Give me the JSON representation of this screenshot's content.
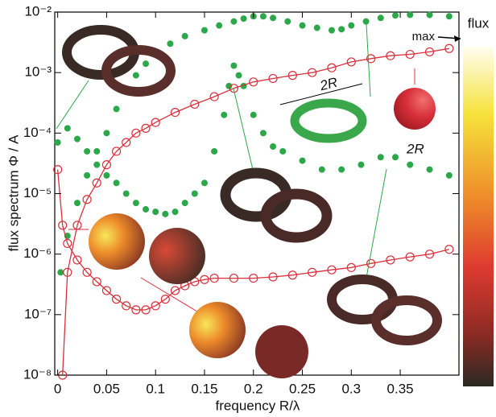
{
  "chart_data": {
    "type": "scatter",
    "y_label": "flux spectrum Φ / A",
    "x_label": "frequency R/λ",
    "xlim": [
      -0.003,
      0.41
    ],
    "ylim": [
      1e-08,
      0.01
    ],
    "log_y": true,
    "xticks": [
      0,
      0.05,
      0.1,
      0.15,
      0.2,
      0.25,
      0.3,
      0.35
    ],
    "yticks": [
      {
        "value": 1e-08,
        "label": "10⁻⁸"
      },
      {
        "value": 1e-07,
        "label": "10⁻⁷"
      },
      {
        "value": 1e-06,
        "label": "10⁻⁶"
      },
      {
        "value": 1e-05,
        "label": "10⁻⁵"
      },
      {
        "value": 0.0001,
        "label": "10⁻⁴"
      },
      {
        "value": 0.001,
        "label": "10⁻³"
      },
      {
        "value": 0.01,
        "label": "10⁻²"
      }
    ],
    "series": [
      {
        "color": "#2ca84a",
        "marker": "dot",
        "x": [
          0.003,
          0.01,
          0.02,
          0.03,
          0.04,
          0.05,
          0.06,
          0.07,
          0.08,
          0.09,
          0.1,
          0.115,
          0.13,
          0.15,
          0.165,
          0.18,
          0.19,
          0.2,
          0.21,
          0.22,
          0.235,
          0.25,
          0.265,
          0.28,
          0.29,
          0.3,
          0.315,
          0.33,
          0.345,
          0.36,
          0.38,
          0.4
        ],
        "values": [
          5e-07,
          2e-06,
          7e-06,
          2e-05,
          5e-05,
          0.0001,
          0.00025,
          0.0005,
          0.0009,
          0.0014,
          0.002,
          0.003,
          0.004,
          0.005,
          0.006,
          0.007,
          0.0078,
          0.0085,
          0.0085,
          0.008,
          0.007,
          0.006,
          0.0055,
          0.005,
          0.0052,
          0.006,
          0.007,
          0.008,
          0.0088,
          0.009,
          0.009,
          0.0085
        ]
      },
      {
        "color": "#2ca84a",
        "marker": "dot",
        "x": [
          0,
          0.01,
          0.02,
          0.03,
          0.04,
          0.05,
          0.06,
          0.07,
          0.08,
          0.09,
          0.1,
          0.11,
          0.12,
          0.13,
          0.14,
          0.15,
          0.16,
          0.17,
          0.175,
          0.18,
          0.185,
          0.19,
          0.2,
          0.21,
          0.22,
          0.23,
          0.25,
          0.27,
          0.29,
          0.31,
          0.33,
          0.345,
          0.36,
          0.38,
          0.4
        ],
        "values": [
          7e-05,
          0.00012,
          8e-05,
          5e-05,
          3e-05,
          2e-05,
          1.5e-05,
          1e-05,
          7e-06,
          5.5e-06,
          5e-06,
          4.6e-06,
          5e-06,
          7e-06,
          1e-05,
          1.5e-05,
          5e-05,
          0.0002,
          0.0006,
          0.0013,
          0.0009,
          0.0006,
          0.0002,
          0.0001,
          6e-05,
          5e-05,
          3.5e-05,
          2.5e-05,
          2.5e-05,
          3e-05,
          4e-05,
          4e-05,
          3e-05,
          2.5e-05,
          2e-05
        ]
      },
      {
        "color": "#d9303c",
        "marker": "circle-line",
        "x": [
          0.005,
          0.01,
          0.02,
          0.03,
          0.04,
          0.05,
          0.06,
          0.07,
          0.08,
          0.09,
          0.1,
          0.12,
          0.14,
          0.16,
          0.18,
          0.2,
          0.22,
          0.24,
          0.26,
          0.28,
          0.3,
          0.32,
          0.34,
          0.36,
          0.38,
          0.4
        ],
        "values": [
          1e-08,
          5e-07,
          3e-06,
          8e-06,
          1.5e-05,
          3e-05,
          5e-05,
          7e-05,
          0.0001,
          0.00012,
          0.00015,
          0.00022,
          0.0003,
          0.0004,
          0.00055,
          0.0007,
          0.0008,
          0.0009,
          0.001,
          0.0012,
          0.0015,
          0.0017,
          0.0019,
          0.002,
          0.0022,
          0.0025
        ]
      },
      {
        "color": "#d9303c",
        "marker": "circle-line",
        "x": [
          0,
          0.005,
          0.01,
          0.02,
          0.03,
          0.04,
          0.05,
          0.06,
          0.07,
          0.08,
          0.09,
          0.1,
          0.11,
          0.12,
          0.13,
          0.14,
          0.15,
          0.16,
          0.18,
          0.2,
          0.22,
          0.24,
          0.26,
          0.28,
          0.3,
          0.32,
          0.34,
          0.36,
          0.38,
          0.4
        ],
        "values": [
          2.5e-05,
          3e-06,
          1.5e-06,
          8e-07,
          5e-07,
          3.5e-07,
          2.5e-07,
          1.8e-07,
          1.4e-07,
          1.2e-07,
          1.2e-07,
          1.4e-07,
          1.8e-07,
          2.5e-07,
          3e-07,
          3.5e-07,
          3.8e-07,
          4e-07,
          4e-07,
          4e-07,
          4.2e-07,
          4.5e-07,
          5e-07,
          5.5e-07,
          6e-07,
          7e-07,
          8e-07,
          9e-07,
          1e-06,
          1.2e-06
        ]
      }
    ],
    "annotations": [
      "2R",
      "2R"
    ],
    "colorbar_title": "flux",
    "colorbar_max": "max"
  }
}
